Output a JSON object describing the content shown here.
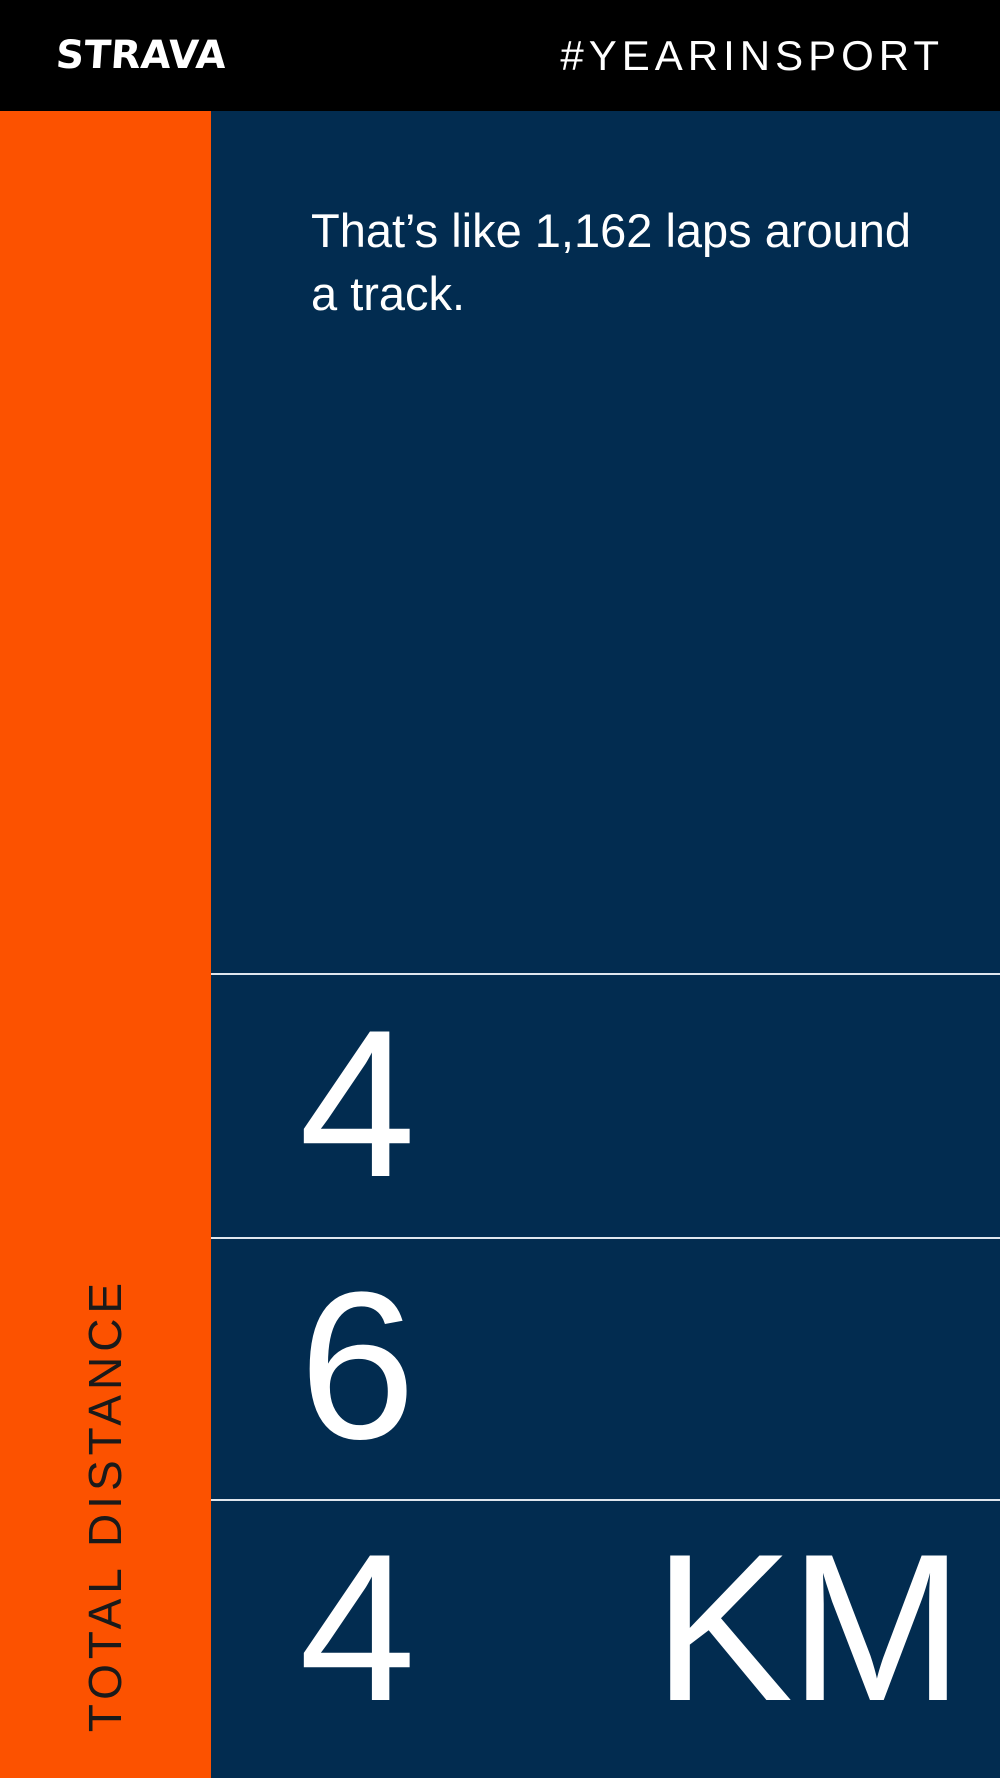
{
  "header": {
    "logo_text": "STRAVA",
    "hashtag": "#YEARINSPORT"
  },
  "sidebar": {
    "label": "TOTAL DISTANCE"
  },
  "main": {
    "caption": "That’s like 1,162 laps around a track.",
    "digits": [
      "4",
      "6",
      "4"
    ],
    "unit": "KM"
  },
  "colors": {
    "header_bg": "#000000",
    "accent_orange": "#fc5200",
    "panel_navy": "#022c50",
    "text": "#ffffff"
  }
}
